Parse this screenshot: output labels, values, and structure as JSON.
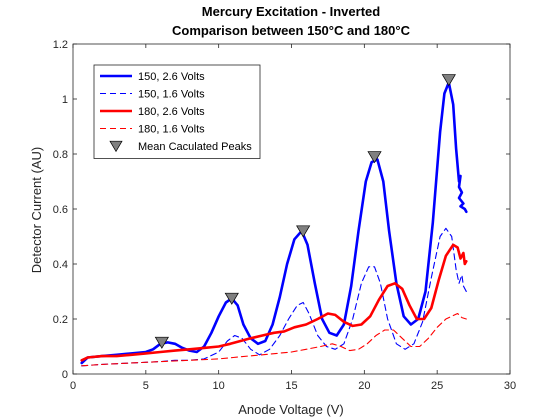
{
  "chart_data": {
    "type": "line",
    "title": [
      "Mercury Excitation - Inverted",
      "Comparison between 150°C and 180°C"
    ],
    "xlabel": "Anode Voltage (V)",
    "ylabel": "Detector Current (AU)",
    "xlim": [
      0,
      30
    ],
    "ylim": [
      0,
      1.2
    ],
    "xticks": [
      0,
      5,
      10,
      15,
      20,
      25,
      30
    ],
    "yticks": [
      0,
      0.2,
      0.4,
      0.6,
      0.8,
      1,
      1.2
    ],
    "xtick_labels": [
      "0",
      "5",
      "10",
      "15",
      "20",
      "25",
      "30"
    ],
    "ytick_labels": [
      "0",
      "0.2",
      "0.4",
      "0.6",
      "0.8",
      "1",
      "1.2"
    ],
    "grid": false,
    "legend_position": "top-left",
    "series": [
      {
        "name": "150, 2.6 Volts",
        "color": "#0000ff",
        "style": "solid",
        "width": "thick",
        "points": [
          [
            0.6,
            0.04
          ],
          [
            1.0,
            0.06
          ],
          [
            2,
            0.065
          ],
          [
            3,
            0.07
          ],
          [
            4,
            0.075
          ],
          [
            5,
            0.08
          ],
          [
            5.5,
            0.09
          ],
          [
            6,
            0.11
          ],
          [
            6.5,
            0.115
          ],
          [
            7,
            0.11
          ],
          [
            7.5,
            0.095
          ],
          [
            8,
            0.085
          ],
          [
            8.5,
            0.08
          ],
          [
            9,
            0.1
          ],
          [
            9.5,
            0.15
          ],
          [
            10,
            0.21
          ],
          [
            10.5,
            0.26
          ],
          [
            10.9,
            0.275
          ],
          [
            11.3,
            0.25
          ],
          [
            11.7,
            0.18
          ],
          [
            12.2,
            0.13
          ],
          [
            12.7,
            0.11
          ],
          [
            13.2,
            0.12
          ],
          [
            13.7,
            0.18
          ],
          [
            14.2,
            0.28
          ],
          [
            14.7,
            0.4
          ],
          [
            15.2,
            0.49
          ],
          [
            15.7,
            0.52
          ],
          [
            16.1,
            0.47
          ],
          [
            16.6,
            0.33
          ],
          [
            17.1,
            0.2
          ],
          [
            17.6,
            0.15
          ],
          [
            18.1,
            0.14
          ],
          [
            18.6,
            0.18
          ],
          [
            19.1,
            0.32
          ],
          [
            19.6,
            0.52
          ],
          [
            20.1,
            0.7
          ],
          [
            20.5,
            0.77
          ],
          [
            20.9,
            0.78
          ],
          [
            21.3,
            0.7
          ],
          [
            21.7,
            0.52
          ],
          [
            22.2,
            0.33
          ],
          [
            22.7,
            0.21
          ],
          [
            23.2,
            0.18
          ],
          [
            23.7,
            0.2
          ],
          [
            24.2,
            0.3
          ],
          [
            24.7,
            0.55
          ],
          [
            25.2,
            0.88
          ],
          [
            25.5,
            1.02
          ],
          [
            25.8,
            1.06
          ],
          [
            26.1,
            0.98
          ],
          [
            26.3,
            0.82
          ],
          [
            26.5,
            0.7
          ],
          [
            26.6,
            0.72
          ],
          [
            26.5,
            0.68
          ],
          [
            26.7,
            0.66
          ],
          [
            26.5,
            0.64
          ],
          [
            26.8,
            0.62
          ],
          [
            26.6,
            0.61
          ],
          [
            26.9,
            0.6
          ],
          [
            27.0,
            0.59
          ]
        ]
      },
      {
        "name": "150, 1.6 Volts",
        "color": "#0000ff",
        "style": "dashed",
        "width": "thin",
        "points": [
          [
            0.6,
            0.03
          ],
          [
            2,
            0.035
          ],
          [
            4,
            0.04
          ],
          [
            6,
            0.045
          ],
          [
            7,
            0.05
          ],
          [
            8,
            0.05
          ],
          [
            9,
            0.055
          ],
          [
            10,
            0.08
          ],
          [
            10.6,
            0.12
          ],
          [
            11.1,
            0.14
          ],
          [
            11.6,
            0.13
          ],
          [
            12.2,
            0.09
          ],
          [
            12.8,
            0.07
          ],
          [
            13.5,
            0.09
          ],
          [
            14.2,
            0.14
          ],
          [
            14.8,
            0.2
          ],
          [
            15.4,
            0.25
          ],
          [
            15.8,
            0.26
          ],
          [
            16.2,
            0.22
          ],
          [
            16.8,
            0.14
          ],
          [
            17.4,
            0.1
          ],
          [
            18.0,
            0.09
          ],
          [
            18.6,
            0.11
          ],
          [
            19.2,
            0.2
          ],
          [
            19.8,
            0.33
          ],
          [
            20.3,
            0.39
          ],
          [
            20.7,
            0.39
          ],
          [
            21.1,
            0.33
          ],
          [
            21.6,
            0.2
          ],
          [
            22.2,
            0.11
          ],
          [
            22.8,
            0.09
          ],
          [
            23.4,
            0.11
          ],
          [
            24.0,
            0.19
          ],
          [
            24.6,
            0.35
          ],
          [
            25.2,
            0.5
          ],
          [
            25.6,
            0.53
          ],
          [
            26.0,
            0.5
          ],
          [
            26.3,
            0.38
          ],
          [
            26.5,
            0.33
          ],
          [
            26.7,
            0.36
          ],
          [
            26.8,
            0.32
          ],
          [
            27.0,
            0.3
          ]
        ]
      },
      {
        "name": "180, 2.6 Volts",
        "color": "#ff0000",
        "style": "solid",
        "width": "thick",
        "points": [
          [
            0.6,
            0.05
          ],
          [
            1.0,
            0.06
          ],
          [
            2,
            0.065
          ],
          [
            3,
            0.065
          ],
          [
            4,
            0.07
          ],
          [
            5,
            0.075
          ],
          [
            6,
            0.08
          ],
          [
            7,
            0.085
          ],
          [
            8,
            0.09
          ],
          [
            9,
            0.095
          ],
          [
            10,
            0.1
          ],
          [
            10.8,
            0.11
          ],
          [
            11.5,
            0.12
          ],
          [
            12.2,
            0.13
          ],
          [
            13.0,
            0.14
          ],
          [
            13.8,
            0.15
          ],
          [
            14.5,
            0.155
          ],
          [
            15.2,
            0.17
          ],
          [
            16.0,
            0.18
          ],
          [
            16.8,
            0.2
          ],
          [
            17.5,
            0.22
          ],
          [
            18.0,
            0.215
          ],
          [
            18.6,
            0.19
          ],
          [
            19.2,
            0.175
          ],
          [
            19.8,
            0.18
          ],
          [
            20.4,
            0.21
          ],
          [
            21.0,
            0.27
          ],
          [
            21.6,
            0.32
          ],
          [
            22.1,
            0.33
          ],
          [
            22.6,
            0.31
          ],
          [
            23.1,
            0.25
          ],
          [
            23.6,
            0.2
          ],
          [
            24.1,
            0.2
          ],
          [
            24.6,
            0.24
          ],
          [
            25.1,
            0.34
          ],
          [
            25.6,
            0.43
          ],
          [
            26.1,
            0.47
          ],
          [
            26.4,
            0.46
          ],
          [
            26.6,
            0.42
          ],
          [
            26.8,
            0.44
          ],
          [
            26.9,
            0.4
          ],
          [
            27.0,
            0.41
          ]
        ]
      },
      {
        "name": "180, 1.6 Volts",
        "color": "#ff0000",
        "style": "dashed",
        "width": "thin",
        "points": [
          [
            0.6,
            0.03
          ],
          [
            2,
            0.035
          ],
          [
            4,
            0.04
          ],
          [
            6,
            0.045
          ],
          [
            8,
            0.05
          ],
          [
            10,
            0.055
          ],
          [
            11,
            0.06
          ],
          [
            12,
            0.065
          ],
          [
            13,
            0.07
          ],
          [
            14,
            0.075
          ],
          [
            15,
            0.08
          ],
          [
            16,
            0.09
          ],
          [
            17,
            0.1
          ],
          [
            17.8,
            0.11
          ],
          [
            18.4,
            0.1
          ],
          [
            19.0,
            0.085
          ],
          [
            19.6,
            0.09
          ],
          [
            20.2,
            0.11
          ],
          [
            20.8,
            0.14
          ],
          [
            21.4,
            0.16
          ],
          [
            22.0,
            0.16
          ],
          [
            22.6,
            0.13
          ],
          [
            23.2,
            0.1
          ],
          [
            23.8,
            0.1
          ],
          [
            24.4,
            0.13
          ],
          [
            25.0,
            0.17
          ],
          [
            25.6,
            0.2
          ],
          [
            26.0,
            0.21
          ],
          [
            26.4,
            0.22
          ],
          [
            26.7,
            0.205
          ],
          [
            27.0,
            0.2
          ]
        ]
      },
      {
        "name": "Mean Caculated Peaks",
        "color": "#808080",
        "marker": "triangle-down",
        "points": [
          [
            6.1,
            0.115
          ],
          [
            10.9,
            0.275
          ],
          [
            15.8,
            0.52
          ],
          [
            20.7,
            0.79
          ],
          [
            25.8,
            1.07
          ]
        ]
      }
    ]
  }
}
